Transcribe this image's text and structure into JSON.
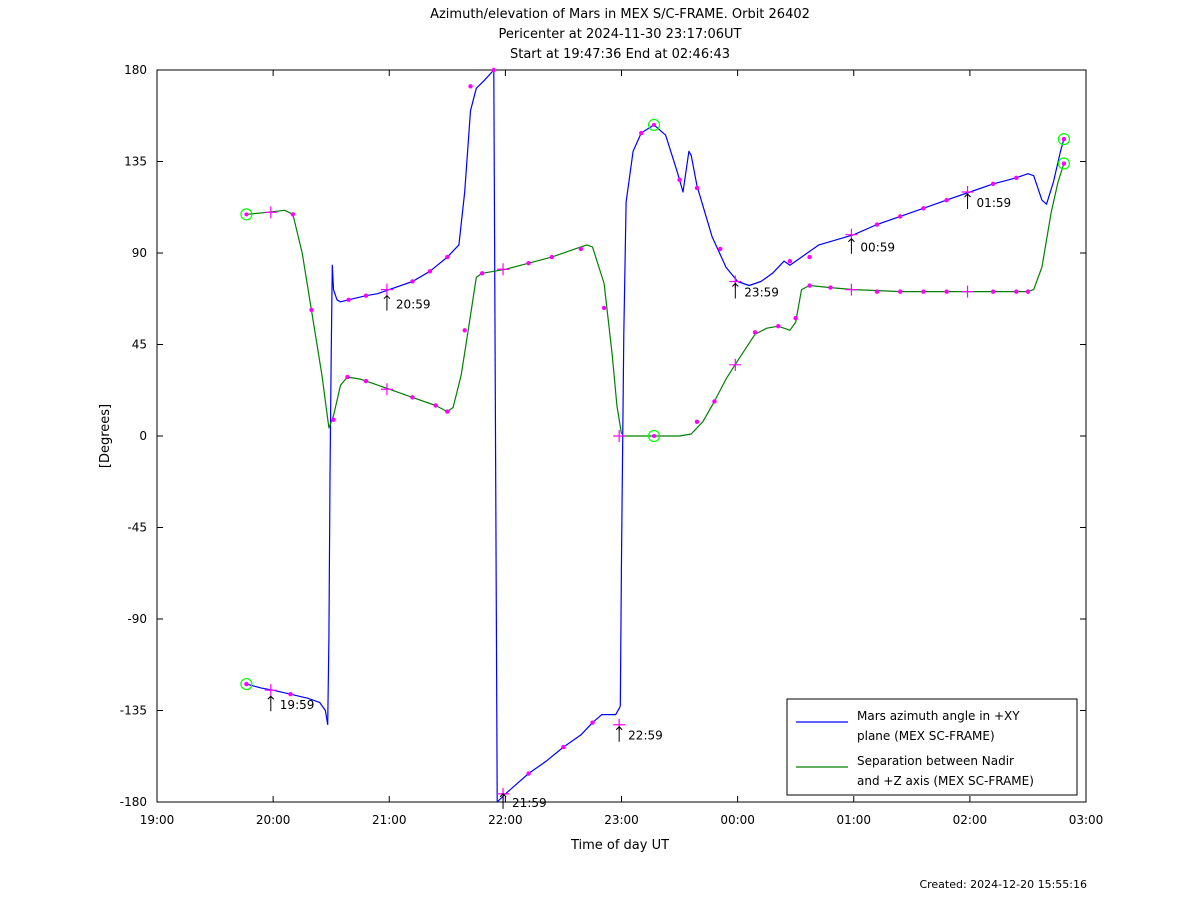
{
  "chart_data": {
    "type": "line",
    "title": "Azimuth/elevation of Mars in MEX S/C-FRAME.  Orbit 26402",
    "subtitle1": "Pericenter at 2024-11-30 23:17:06UT",
    "subtitle2": "Start at 19:47:36 End at 02:46:43",
    "xlabel": "Time of day UT",
    "ylabel": "[Degrees]",
    "x_unit": "hours since 19:00 UT",
    "xlim": [
      0,
      8
    ],
    "ylim": [
      -180,
      180
    ],
    "x_tick_labels": [
      "19:00",
      "20:00",
      "21:00",
      "22:00",
      "23:00",
      "00:00",
      "01:00",
      "02:00",
      "03:00"
    ],
    "y_ticks": [
      180,
      135,
      90,
      45,
      0,
      -45,
      -90,
      -135,
      -180
    ],
    "legend_position": "bottom-right",
    "created": "Created: 2024-12-20 15:55:16",
    "annotations": [
      {
        "text": "19:59",
        "x": 0.98,
        "y": -127
      },
      {
        "text": "20:59",
        "x": 1.98,
        "y": 70
      },
      {
        "text": "21:59",
        "x": 2.98,
        "y": -175
      },
      {
        "text": "22:59",
        "x": 3.98,
        "y": -142
      },
      {
        "text": "23:59",
        "x": 4.98,
        "y": 76
      },
      {
        "text": "00:59",
        "x": 5.98,
        "y": 98
      },
      {
        "text": "01:59",
        "x": 6.98,
        "y": 120
      }
    ],
    "series": [
      {
        "name": "Mars azimuth angle in +XY plane (MEX SC-FRAME)",
        "legend_line1": "Mars azimuth angle in +XY",
        "legend_line2": "plane (MEX SC-FRAME)",
        "color": "#0000ff",
        "segments": [
          [
            [
              0.77,
              -122
            ],
            [
              0.9,
              -124
            ],
            [
              1.0,
              -125
            ],
            [
              1.15,
              -127
            ],
            [
              1.3,
              -129
            ],
            [
              1.4,
              -131
            ],
            [
              1.45,
              -135
            ],
            [
              1.47,
              -142
            ]
          ],
          [
            [
              1.47,
              -142
            ],
            [
              1.48,
              -100
            ],
            [
              1.49,
              -20
            ],
            [
              1.5,
              40
            ],
            [
              1.51,
              84
            ],
            [
              1.52,
              72
            ],
            [
              1.55,
              67
            ],
            [
              1.58,
              66
            ],
            [
              1.65,
              67
            ],
            [
              1.8,
              69
            ],
            [
              1.9,
              70
            ],
            [
              2.0,
              72
            ],
            [
              2.2,
              76
            ],
            [
              2.35,
              81
            ],
            [
              2.5,
              88
            ],
            [
              2.6,
              94
            ],
            [
              2.65,
              120
            ],
            [
              2.7,
              160
            ],
            [
              2.75,
              171
            ],
            [
              2.82,
              175
            ],
            [
              2.9,
              180
            ]
          ],
          [
            [
              2.9,
              180
            ],
            [
              2.93,
              -180
            ]
          ],
          [
            [
              2.93,
              -180
            ],
            [
              3.0,
              -176
            ],
            [
              3.1,
              -171
            ],
            [
              3.2,
              -166
            ],
            [
              3.35,
              -160
            ],
            [
              3.5,
              -153
            ],
            [
              3.65,
              -147
            ],
            [
              3.75,
              -141
            ],
            [
              3.83,
              -137
            ],
            [
              3.95,
              -137
            ],
            [
              3.99,
              -133
            ]
          ],
          [
            [
              3.99,
              -133
            ],
            [
              4.0,
              -60
            ],
            [
              4.02,
              50
            ],
            [
              4.04,
              115
            ],
            [
              4.1,
              140
            ],
            [
              4.17,
              149
            ],
            [
              4.28,
              153
            ],
            [
              4.38,
              148
            ],
            [
              4.48,
              130
            ],
            [
              4.53,
              120
            ],
            [
              4.58,
              140
            ],
            [
              4.6,
              138
            ],
            [
              4.65,
              123
            ],
            [
              4.78,
              98
            ],
            [
              4.9,
              83
            ],
            [
              5.0,
              76
            ],
            [
              5.1,
              74
            ],
            [
              5.2,
              76
            ],
            [
              5.3,
              80
            ],
            [
              5.4,
              86
            ],
            [
              5.45,
              84
            ],
            [
              5.55,
              88
            ],
            [
              5.7,
              94
            ],
            [
              6.0,
              99
            ],
            [
              6.2,
              104
            ],
            [
              6.4,
              108
            ],
            [
              6.6,
              112
            ],
            [
              6.8,
              116
            ],
            [
              7.0,
              120
            ],
            [
              7.2,
              124
            ],
            [
              7.4,
              127
            ],
            [
              7.5,
              129
            ],
            [
              7.55,
              128
            ],
            [
              7.62,
              116
            ],
            [
              7.66,
              114
            ],
            [
              7.72,
              125
            ],
            [
              7.78,
              140
            ],
            [
              7.81,
              146
            ]
          ]
        ]
      },
      {
        "name": "Separation between Nadir and +Z axis (MEX SC-FRAME)",
        "legend_line1": "Separation between Nadir",
        "legend_line2": "and +Z axis (MEX SC-FRAME)",
        "color": "#008000",
        "segments": [
          [
            [
              0.77,
              109
            ],
            [
              0.95,
              110
            ],
            [
              1.1,
              111
            ],
            [
              1.17,
              109
            ],
            [
              1.25,
              90
            ],
            [
              1.33,
              62
            ],
            [
              1.42,
              30
            ],
            [
              1.48,
              4
            ],
            [
              1.52,
              10
            ],
            [
              1.58,
              25
            ],
            [
              1.64,
              29
            ],
            [
              1.75,
              28
            ],
            [
              1.85,
              26
            ],
            [
              2.0,
              23
            ],
            [
              2.2,
              19
            ],
            [
              2.4,
              15
            ],
            [
              2.5,
              12
            ],
            [
              2.55,
              14
            ],
            [
              2.62,
              30
            ],
            [
              2.68,
              52
            ],
            [
              2.75,
              78
            ],
            [
              2.8,
              80
            ],
            [
              3.0,
              82
            ],
            [
              3.2,
              85
            ],
            [
              3.4,
              88
            ],
            [
              3.6,
              92
            ],
            [
              3.7,
              94
            ],
            [
              3.75,
              93
            ],
            [
              3.85,
              75
            ],
            [
              3.92,
              40
            ],
            [
              3.96,
              15
            ],
            [
              4.0,
              1
            ]
          ],
          [
            [
              4.0,
              0
            ],
            [
              4.28,
              0
            ],
            [
              4.5,
              0
            ],
            [
              4.6,
              1
            ],
            [
              4.7,
              7
            ],
            [
              4.8,
              17
            ],
            [
              4.9,
              28
            ],
            [
              5.0,
              37
            ],
            [
              5.15,
              50
            ],
            [
              5.25,
              53
            ],
            [
              5.35,
              54
            ],
            [
              5.45,
              52
            ],
            [
              5.5,
              56
            ],
            [
              5.55,
              72
            ],
            [
              5.62,
              74
            ],
            [
              5.8,
              73
            ],
            [
              6.0,
              72
            ],
            [
              6.4,
              71
            ],
            [
              6.8,
              71
            ],
            [
              7.2,
              71
            ],
            [
              7.5,
              71
            ],
            [
              7.55,
              72
            ],
            [
              7.62,
              83
            ],
            [
              7.7,
              110
            ],
            [
              7.76,
              125
            ],
            [
              7.81,
              134
            ]
          ]
        ]
      }
    ],
    "markers_small": [
      {
        "x": 0.77,
        "y": -122
      },
      {
        "x": 1.15,
        "y": -127
      },
      {
        "x": 1.17,
        "y": 109
      },
      {
        "x": 1.33,
        "y": 62
      },
      {
        "x": 1.52,
        "y": 8
      },
      {
        "x": 1.64,
        "y": 29
      },
      {
        "x": 1.65,
        "y": 67
      },
      {
        "x": 1.8,
        "y": 27
      },
      {
        "x": 1.8,
        "y": 69
      },
      {
        "x": 2.2,
        "y": 76
      },
      {
        "x": 2.2,
        "y": 19
      },
      {
        "x": 2.35,
        "y": 81
      },
      {
        "x": 2.4,
        "y": 15
      },
      {
        "x": 2.5,
        "y": 88
      },
      {
        "x": 2.5,
        "y": 12
      },
      {
        "x": 2.65,
        "y": 52
      },
      {
        "x": 2.7,
        "y": 172
      },
      {
        "x": 2.9,
        "y": 180
      },
      {
        "x": 2.8,
        "y": 80
      },
      {
        "x": 3.2,
        "y": 85
      },
      {
        "x": 3.4,
        "y": 88
      },
      {
        "x": 3.65,
        "y": 92
      },
      {
        "x": 3.85,
        "y": 63
      },
      {
        "x": 3.2,
        "y": -166
      },
      {
        "x": 3.5,
        "y": -153
      },
      {
        "x": 3.75,
        "y": -141
      },
      {
        "x": 4.17,
        "y": 149
      },
      {
        "x": 4.5,
        "y": 126
      },
      {
        "x": 4.65,
        "y": 122
      },
      {
        "x": 4.85,
        "y": 92
      },
      {
        "x": 4.65,
        "y": 7
      },
      {
        "x": 4.8,
        "y": 17
      },
      {
        "x": 5.15,
        "y": 51
      },
      {
        "x": 5.35,
        "y": 54
      },
      {
        "x": 5.5,
        "y": 58
      },
      {
        "x": 5.45,
        "y": 86
      },
      {
        "x": 5.62,
        "y": 74
      },
      {
        "x": 5.62,
        "y": 88
      },
      {
        "x": 5.8,
        "y": 73
      },
      {
        "x": 6.2,
        "y": 104
      },
      {
        "x": 6.2,
        "y": 71
      },
      {
        "x": 6.4,
        "y": 108
      },
      {
        "x": 6.4,
        "y": 71
      },
      {
        "x": 6.6,
        "y": 112
      },
      {
        "x": 6.6,
        "y": 71
      },
      {
        "x": 6.8,
        "y": 116
      },
      {
        "x": 6.8,
        "y": 71
      },
      {
        "x": 7.2,
        "y": 124
      },
      {
        "x": 7.2,
        "y": 71
      },
      {
        "x": 7.4,
        "y": 127
      },
      {
        "x": 7.4,
        "y": 71
      },
      {
        "x": 7.5,
        "y": 71
      },
      {
        "x": 7.81,
        "y": 146
      },
      {
        "x": 7.81,
        "y": 134
      }
    ],
    "markers_plus": [
      {
        "x": 0.98,
        "y": -125
      },
      {
        "x": 0.98,
        "y": 110
      },
      {
        "x": 1.98,
        "y": 72
      },
      {
        "x": 1.98,
        "y": 23
      },
      {
        "x": 2.98,
        "y": 82
      },
      {
        "x": 2.98,
        "y": -176
      },
      {
        "x": 3.98,
        "y": -142
      },
      {
        "x": 3.98,
        "y": 0
      },
      {
        "x": 4.98,
        "y": 76
      },
      {
        "x": 4.98,
        "y": 35
      },
      {
        "x": 5.98,
        "y": 99
      },
      {
        "x": 5.98,
        "y": 72
      },
      {
        "x": 6.98,
        "y": 120
      },
      {
        "x": 6.98,
        "y": 71
      }
    ],
    "markers_circle": [
      {
        "x": 0.77,
        "y": 109
      },
      {
        "x": 0.77,
        "y": -122
      },
      {
        "x": 4.28,
        "y": 153
      },
      {
        "x": 4.28,
        "y": 0
      },
      {
        "x": 7.81,
        "y": 146
      },
      {
        "x": 7.81,
        "y": 134
      }
    ],
    "marker_colors": {
      "small": "#ff00ff",
      "plus": "#ff00ff",
      "circle": "#00ff00"
    }
  }
}
